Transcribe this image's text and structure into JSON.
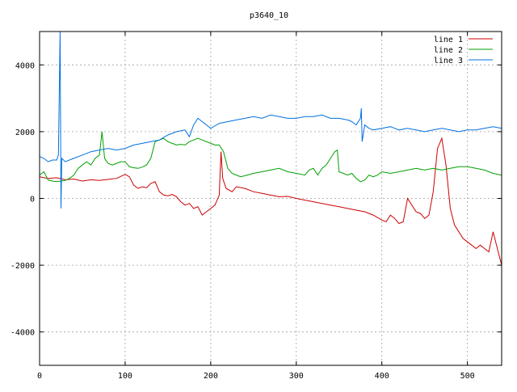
{
  "chart_data": {
    "type": "line",
    "title": "p3640_10",
    "xlabel": "",
    "ylabel": "",
    "xlim": [
      0,
      540
    ],
    "ylim": [
      -5000,
      5000
    ],
    "x_ticks": [
      0,
      100,
      200,
      300,
      400,
      500
    ],
    "y_ticks": [
      -4000,
      -2000,
      0,
      2000,
      4000
    ],
    "grid": true,
    "legend_position": "top-right",
    "series": [
      {
        "name": "line 1",
        "color": "#cc0000",
        "points": [
          [
            0,
            650
          ],
          [
            10,
            600
          ],
          [
            20,
            620
          ],
          [
            30,
            560
          ],
          [
            40,
            580
          ],
          [
            50,
            520
          ],
          [
            60,
            560
          ],
          [
            70,
            540
          ],
          [
            80,
            570
          ],
          [
            90,
            600
          ],
          [
            100,
            720
          ],
          [
            105,
            650
          ],
          [
            110,
            400
          ],
          [
            115,
            300
          ],
          [
            120,
            350
          ],
          [
            125,
            320
          ],
          [
            130,
            450
          ],
          [
            135,
            500
          ],
          [
            140,
            200
          ],
          [
            145,
            100
          ],
          [
            150,
            80
          ],
          [
            155,
            120
          ],
          [
            160,
            50
          ],
          [
            165,
            -100
          ],
          [
            170,
            -200
          ],
          [
            175,
            -150
          ],
          [
            180,
            -300
          ],
          [
            185,
            -250
          ],
          [
            190,
            -500
          ],
          [
            195,
            -400
          ],
          [
            200,
            -300
          ],
          [
            205,
            -200
          ],
          [
            210,
            100
          ],
          [
            212,
            1400
          ],
          [
            214,
            600
          ],
          [
            218,
            300
          ],
          [
            225,
            200
          ],
          [
            230,
            350
          ],
          [
            240,
            300
          ],
          [
            250,
            200
          ],
          [
            260,
            150
          ],
          [
            270,
            100
          ],
          [
            280,
            50
          ],
          [
            290,
            60
          ],
          [
            300,
            0
          ],
          [
            310,
            -50
          ],
          [
            320,
            -100
          ],
          [
            330,
            -150
          ],
          [
            340,
            -200
          ],
          [
            350,
            -250
          ],
          [
            360,
            -300
          ],
          [
            370,
            -350
          ],
          [
            380,
            -400
          ],
          [
            390,
            -500
          ],
          [
            400,
            -650
          ],
          [
            405,
            -700
          ],
          [
            410,
            -500
          ],
          [
            415,
            -600
          ],
          [
            420,
            -750
          ],
          [
            425,
            -700
          ],
          [
            430,
            0
          ],
          [
            435,
            -200
          ],
          [
            440,
            -400
          ],
          [
            445,
            -450
          ],
          [
            450,
            -600
          ],
          [
            455,
            -500
          ],
          [
            460,
            200
          ],
          [
            465,
            1500
          ],
          [
            470,
            1800
          ],
          [
            475,
            1000
          ],
          [
            480,
            -300
          ],
          [
            485,
            -800
          ],
          [
            490,
            -1000
          ],
          [
            495,
            -1200
          ],
          [
            500,
            -1300
          ],
          [
            505,
            -1400
          ],
          [
            510,
            -1500
          ],
          [
            515,
            -1400
          ],
          [
            520,
            -1500
          ],
          [
            525,
            -1600
          ],
          [
            530,
            -1000
          ],
          [
            535,
            -1500
          ],
          [
            540,
            -2000
          ]
        ]
      },
      {
        "name": "line 2",
        "color": "#00a000",
        "points": [
          [
            0,
            700
          ],
          [
            5,
            800
          ],
          [
            10,
            550
          ],
          [
            15,
            520
          ],
          [
            20,
            500
          ],
          [
            25,
            520
          ],
          [
            30,
            540
          ],
          [
            35,
            600
          ],
          [
            40,
            700
          ],
          [
            45,
            900
          ],
          [
            50,
            1000
          ],
          [
            55,
            1100
          ],
          [
            60,
            1000
          ],
          [
            65,
            1200
          ],
          [
            70,
            1300
          ],
          [
            73,
            2000
          ],
          [
            76,
            1200
          ],
          [
            80,
            1050
          ],
          [
            85,
            1000
          ],
          [
            90,
            1050
          ],
          [
            95,
            1100
          ],
          [
            100,
            1100
          ],
          [
            105,
            950
          ],
          [
            110,
            920
          ],
          [
            115,
            900
          ],
          [
            120,
            940
          ],
          [
            125,
            1000
          ],
          [
            130,
            1200
          ],
          [
            135,
            1700
          ],
          [
            140,
            1750
          ],
          [
            145,
            1800
          ],
          [
            150,
            1700
          ],
          [
            155,
            1650
          ],
          [
            160,
            1600
          ],
          [
            165,
            1620
          ],
          [
            170,
            1600
          ],
          [
            175,
            1700
          ],
          [
            180,
            1750
          ],
          [
            185,
            1800
          ],
          [
            190,
            1750
          ],
          [
            195,
            1700
          ],
          [
            200,
            1650
          ],
          [
            205,
            1600
          ],
          [
            210,
            1600
          ],
          [
            215,
            1400
          ],
          [
            220,
            900
          ],
          [
            225,
            750
          ],
          [
            230,
            700
          ],
          [
            235,
            650
          ],
          [
            240,
            680
          ],
          [
            250,
            750
          ],
          [
            260,
            800
          ],
          [
            270,
            850
          ],
          [
            280,
            900
          ],
          [
            290,
            800
          ],
          [
            300,
            750
          ],
          [
            310,
            700
          ],
          [
            315,
            850
          ],
          [
            320,
            900
          ],
          [
            325,
            700
          ],
          [
            330,
            900
          ],
          [
            335,
            1000
          ],
          [
            340,
            1200
          ],
          [
            345,
            1400
          ],
          [
            348,
            1450
          ],
          [
            350,
            800
          ],
          [
            355,
            750
          ],
          [
            360,
            700
          ],
          [
            365,
            750
          ],
          [
            370,
            600
          ],
          [
            375,
            500
          ],
          [
            380,
            550
          ],
          [
            385,
            700
          ],
          [
            390,
            650
          ],
          [
            395,
            700
          ],
          [
            400,
            800
          ],
          [
            410,
            750
          ],
          [
            420,
            800
          ],
          [
            430,
            850
          ],
          [
            440,
            900
          ],
          [
            450,
            850
          ],
          [
            460,
            900
          ],
          [
            470,
            850
          ],
          [
            480,
            900
          ],
          [
            490,
            950
          ],
          [
            500,
            950
          ],
          [
            510,
            900
          ],
          [
            520,
            850
          ],
          [
            530,
            750
          ],
          [
            540,
            700
          ]
        ]
      },
      {
        "name": "line 3",
        "color": "#0070e0",
        "points": [
          [
            0,
            1250
          ],
          [
            5,
            1200
          ],
          [
            10,
            1100
          ],
          [
            15,
            1150
          ],
          [
            20,
            1150
          ],
          [
            22,
            1300
          ],
          [
            23,
            3200
          ],
          [
            24,
            5000
          ],
          [
            25,
            -300
          ],
          [
            26,
            1200
          ],
          [
            30,
            1100
          ],
          [
            40,
            1200
          ],
          [
            50,
            1300
          ],
          [
            60,
            1400
          ],
          [
            70,
            1450
          ],
          [
            80,
            1500
          ],
          [
            90,
            1450
          ],
          [
            100,
            1500
          ],
          [
            110,
            1600
          ],
          [
            120,
            1650
          ],
          [
            130,
            1700
          ],
          [
            140,
            1750
          ],
          [
            150,
            1900
          ],
          [
            160,
            2000
          ],
          [
            170,
            2050
          ],
          [
            175,
            1850
          ],
          [
            180,
            2200
          ],
          [
            185,
            2400
          ],
          [
            190,
            2300
          ],
          [
            200,
            2100
          ],
          [
            210,
            2250
          ],
          [
            220,
            2300
          ],
          [
            230,
            2350
          ],
          [
            240,
            2400
          ],
          [
            250,
            2450
          ],
          [
            260,
            2400
          ],
          [
            270,
            2500
          ],
          [
            280,
            2450
          ],
          [
            290,
            2400
          ],
          [
            300,
            2400
          ],
          [
            310,
            2450
          ],
          [
            320,
            2450
          ],
          [
            330,
            2500
          ],
          [
            340,
            2400
          ],
          [
            350,
            2400
          ],
          [
            360,
            2350
          ],
          [
            365,
            2300
          ],
          [
            370,
            2200
          ],
          [
            375,
            2400
          ],
          [
            376,
            2700
          ],
          [
            377,
            1700
          ],
          [
            380,
            2200
          ],
          [
            385,
            2100
          ],
          [
            390,
            2050
          ],
          [
            400,
            2100
          ],
          [
            410,
            2150
          ],
          [
            420,
            2050
          ],
          [
            430,
            2100
          ],
          [
            440,
            2050
          ],
          [
            450,
            2000
          ],
          [
            460,
            2050
          ],
          [
            470,
            2100
          ],
          [
            480,
            2050
          ],
          [
            490,
            2000
          ],
          [
            500,
            2050
          ],
          [
            510,
            2050
          ],
          [
            520,
            2100
          ],
          [
            530,
            2150
          ],
          [
            540,
            2100
          ]
        ]
      }
    ]
  }
}
